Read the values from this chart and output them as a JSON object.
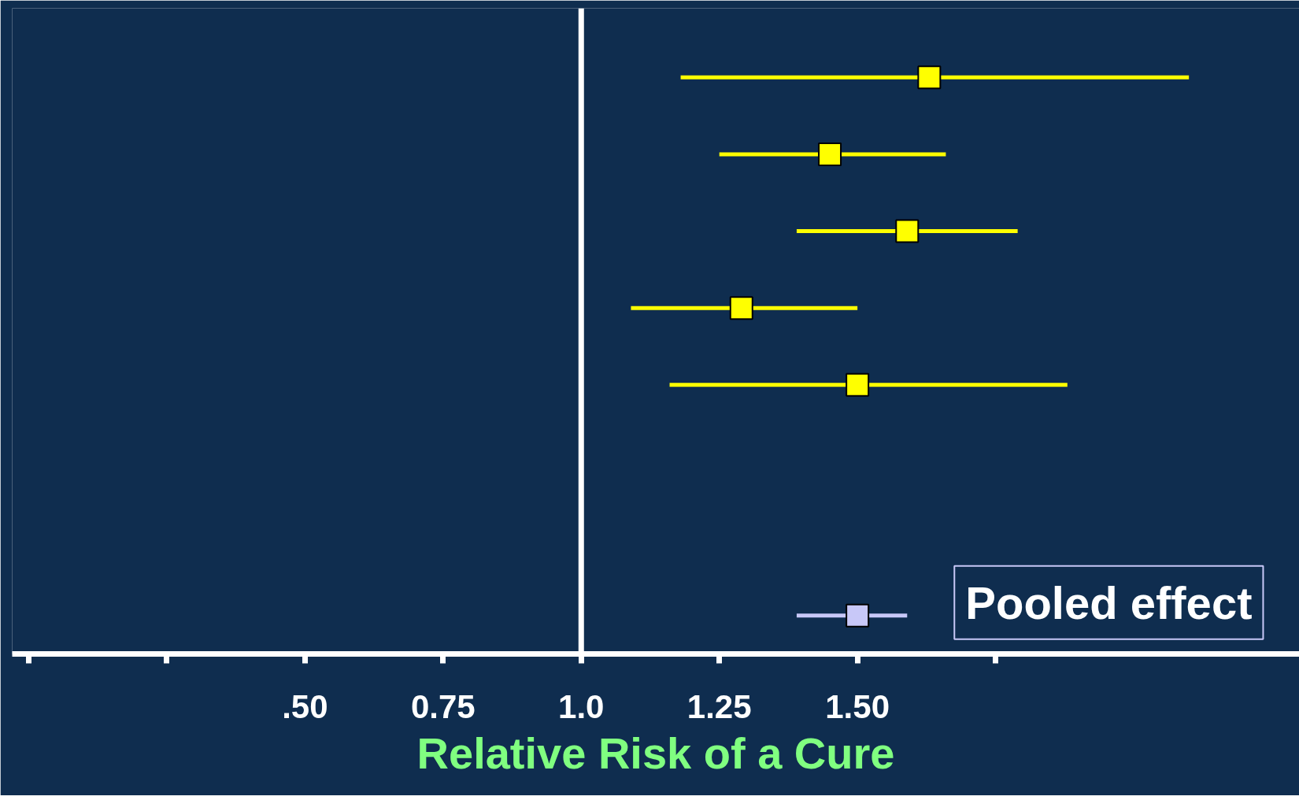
{
  "chart_data": {
    "type": "scatter",
    "orientation": "horizontal",
    "categories": [
      null,
      null,
      null,
      null,
      null,
      null,
      null,
      null
    ],
    "series": [
      {
        "color": "#ffff00",
        "values": [
          1.63,
          1.45,
          1.59,
          1.29,
          1.5,
          null,
          null,
          null
        ],
        "errors": [
          [
            1.18,
            2.1
          ],
          [
            1.25,
            1.66
          ],
          [
            1.39,
            1.79
          ],
          [
            1.09,
            1.5
          ],
          [
            1.16,
            1.88
          ],
          null,
          null,
          null
        ]
      },
      {
        "name": "Pooled effect",
        "color": "#c8c8f8",
        "values": [
          null,
          null,
          null,
          null,
          null,
          null,
          null,
          1.5
        ],
        "errors": [
          null,
          null,
          null,
          null,
          null,
          null,
          null,
          [
            1.39,
            1.59
          ]
        ]
      }
    ],
    "marker": "square",
    "xlim": [
      -0.03,
      2.3
    ],
    "xticks": [
      {
        "value": 0,
        "label": null
      },
      {
        "value": 0.25,
        "label": null
      },
      {
        "value": 0.5,
        "label": ".50"
      },
      {
        "value": 0.75,
        "label": "0.75"
      },
      {
        "value": 1.0,
        "label": "1.0"
      },
      {
        "value": 1.25,
        "label": "1.25"
      },
      {
        "value": 1.5,
        "label": "1.50"
      },
      {
        "value": 1.75,
        "label": null
      }
    ],
    "xlabel": "Relative Risk of a Cure",
    "ref_lines": [
      {
        "axis": "x",
        "value": 1.0,
        "color": "#ffffff"
      }
    ],
    "tick_labels": "x",
    "grid": false,
    "legend": "bottom right"
  }
}
